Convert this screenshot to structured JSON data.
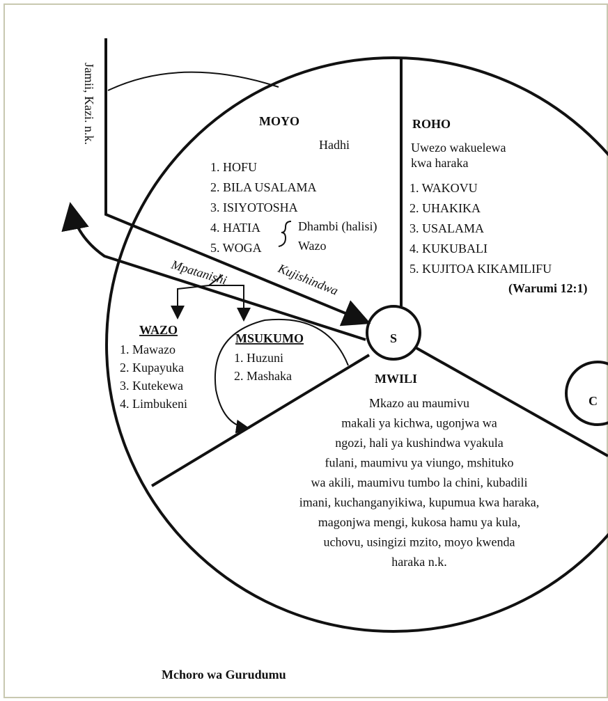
{
  "side_label": "Jamii, Kazi. n.k.",
  "arrows": {
    "left": "Mpatanishi",
    "center": "Kujishindwa"
  },
  "moyo": {
    "title": "MOYO",
    "subtitle": "Hadhi",
    "items": [
      "1. HOFU",
      "2. BILA USALAMA",
      "3. ISIYOTOSHA",
      "4. HATIA",
      "5. WOGA"
    ],
    "brace": [
      "Dhambi (halisi)",
      "Wazo"
    ]
  },
  "roho": {
    "title": "ROHO",
    "subtitle": [
      "Uwezo wakuelewa",
      "kwa haraka"
    ],
    "items": [
      "1. WAKOVU",
      "2. UHAKIKA",
      "3. USALAMA",
      "4. KUKUBALI",
      "5. KUJITOA KIKAMILIFU"
    ],
    "reference": "(Warumi 12:1)"
  },
  "wazo": {
    "title": "WAZO",
    "items": [
      "1. Mawazo",
      "2. Kupayuka",
      "3. Kutekewa",
      "4. Limbukeni"
    ]
  },
  "msukumo": {
    "title": "MSUKUMO",
    "items": [
      "1. Huzuni",
      "2. Mashaka"
    ]
  },
  "mwili": {
    "title": "MWILI",
    "lines": [
      "Mkazo au maumivu",
      "makali ya kichwa, ugonjwa wa",
      "ngozi, hali ya kushindwa vyakula",
      "fulani, maumivu ya viungo, mshituko",
      "wa akili, maumivu tumbo la chini, kubadili",
      "imani, kuchanganyikiwa, kupumua kwa haraka,",
      "magonjwa mengi, kukosa hamu ya kula,",
      "uchovu, usingizi mzito, moyo kwenda",
      "haraka n.k."
    ]
  },
  "center": "S",
  "right_circle": "C",
  "caption": "Mchoro wa Gurudumu"
}
